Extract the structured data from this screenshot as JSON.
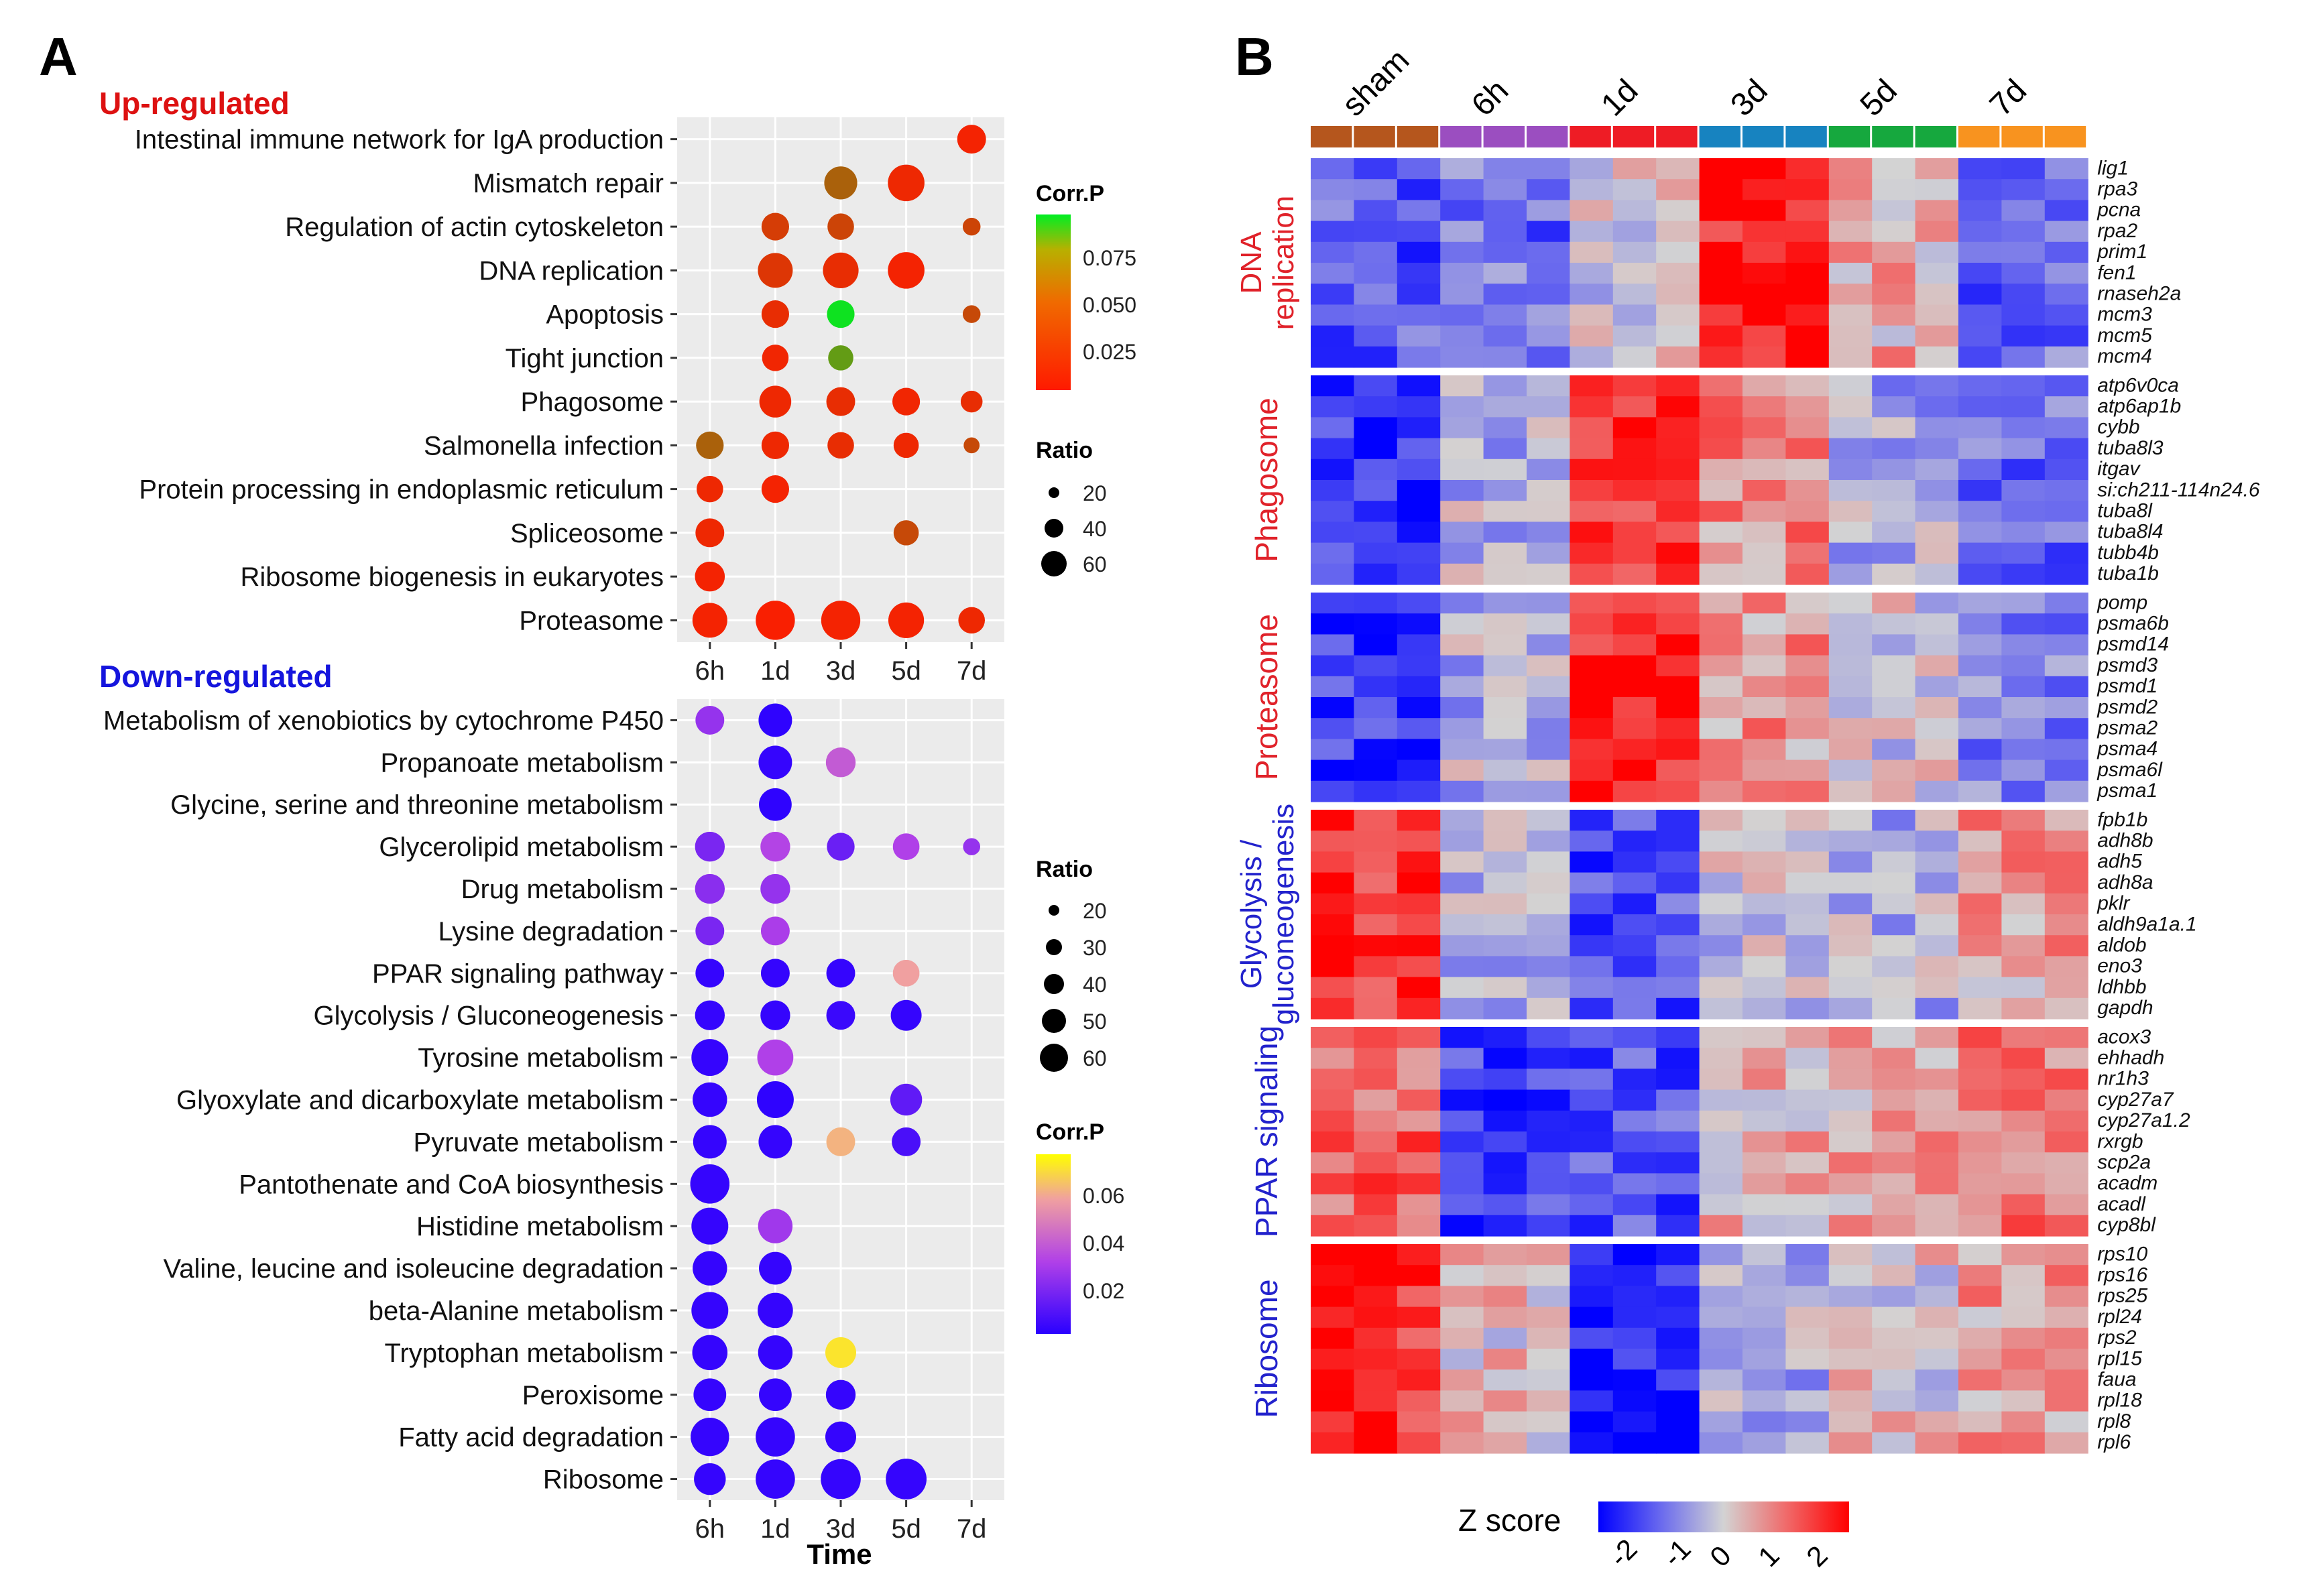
{
  "panelA": {
    "letter": "A",
    "up_title": "Up-regulated",
    "down_title": "Down-regulated",
    "time_label": "Time",
    "up_legend": {
      "corr_title": "Corr.P",
      "corr_ticks": [
        "0.075",
        "0.050",
        "0.025"
      ],
      "ratio_title": "Ratio",
      "ratio_ticks": [
        "20",
        "40",
        "60"
      ]
    },
    "down_legend": {
      "ratio_title": "Ratio",
      "ratio_ticks": [
        "20",
        "30",
        "40",
        "50",
        "60"
      ],
      "corr_title": "Corr.P",
      "corr_ticks": [
        "0.06",
        "0.04",
        "0.02"
      ]
    }
  },
  "panelB": {
    "letter": "B",
    "groups": [
      "sham",
      "6h",
      "1d",
      "3d",
      "5d",
      "7d"
    ],
    "group_colors": [
      "#B5561D",
      "#9B4EC0",
      "#EE1C25",
      "#1783C0",
      "#16A83E",
      "#F8931F"
    ],
    "legend_title": "Z score",
    "legend_ticks": [
      "-2",
      "-1",
      "0",
      "1",
      "2"
    ],
    "modules": [
      {
        "label": "DNA\nreplication",
        "color": "#E0222A",
        "genes": [
          "lig1",
          "rpa3",
          "pcna",
          "rpa2",
          "prim1",
          "fen1",
          "rnaseh2a",
          "mcm3",
          "mcm5",
          "mcm4"
        ]
      },
      {
        "label": "Phagosome",
        "color": "#E0222A",
        "genes": [
          "atp6v0ca",
          "atp6ap1b",
          "cybb",
          "tuba8l3",
          "itgav",
          "si:ch211-114n24.6",
          "tuba8l",
          "tuba8l4",
          "tubb4b",
          "tuba1b"
        ]
      },
      {
        "label": "Proteasome",
        "color": "#E0222A",
        "genes": [
          "pomp",
          "psma6b",
          "psmd14",
          "psmd3",
          "psmd1",
          "psmd2",
          "psma2",
          "psma4",
          "psma6l",
          "psma1"
        ]
      },
      {
        "label": "Glycolysis /\ngluconeogenesis",
        "color": "#2222CC",
        "genes": [
          "fpb1b",
          "adh8b",
          "adh5",
          "adh8a",
          "pklr",
          "aldh9a1a.1",
          "aldob",
          "eno3",
          "ldhbb",
          "gapdh"
        ]
      },
      {
        "label": "PPAR signaling",
        "color": "#2222CC",
        "genes": [
          "acox3",
          "ehhadh",
          "nr1h3",
          "cyp27a7",
          "cyp27a1.2",
          "rxrgb",
          "scp2a",
          "acadm",
          "acadl",
          "cyp8bl"
        ]
      },
      {
        "label": "Ribosome",
        "color": "#2222CC",
        "genes": [
          "rps10",
          "rps16",
          "rps25",
          "rpl24",
          "rps2",
          "rpl15",
          "faua",
          "rpl18",
          "rpl8",
          "rpl6"
        ]
      }
    ],
    "module_profiles": [
      [
        -1.2,
        -1.0,
        0.0,
        1.8,
        0.4,
        -1.0
      ],
      [
        -1.6,
        -0.3,
        1.4,
        0.7,
        -0.4,
        -1.0
      ],
      [
        -1.5,
        -0.3,
        1.7,
        0.6,
        0.0,
        -0.7
      ],
      [
        1.6,
        -0.3,
        -1.3,
        -0.2,
        -0.3,
        0.5
      ],
      [
        1.1,
        -1.4,
        -1.2,
        0.4,
        0.4,
        0.8
      ],
      [
        1.6,
        0.2,
        -1.8,
        -0.3,
        0.1,
        0.5
      ]
    ]
  },
  "chart_data": [
    {
      "type": "scatter",
      "subtype": "bubble",
      "title": "Up-regulated",
      "xlabel": "",
      "x_categories": [
        "6h",
        "1d",
        "3d",
        "5d",
        "7d"
      ],
      "y_categories": [
        "Intestinal immune network for IgA production",
        "Mismatch repair",
        "Regulation of actin cytoskeleton",
        "DNA replication",
        "Apoptosis",
        "Tight junction",
        "Phagosome",
        "Salmonella infection",
        "Protein processing in endoplasmic reticulum",
        "Spliceosome",
        "Ribosome biogenesis in eukaryotes",
        "Proteasome"
      ],
      "color_legend": {
        "title": "Corr.P",
        "ticks": [
          0.075,
          0.05,
          0.025
        ],
        "range": [
          0.0,
          0.09
        ],
        "colors": [
          "#FF1A00",
          "#00EE22"
        ]
      },
      "size_legend": {
        "title": "Ratio",
        "ticks": [
          20,
          40,
          60
        ]
      },
      "points": [
        {
          "pathway": "Intestinal immune network for IgA production",
          "time": "7d",
          "ratio": 26,
          "p": 0.004
        },
        {
          "pathway": "Mismatch repair",
          "time": "3d",
          "ratio": 34,
          "p": 0.03
        },
        {
          "pathway": "Mismatch repair",
          "time": "5d",
          "ratio": 42,
          "p": 0.006
        },
        {
          "pathway": "Regulation of actin cytoskeleton",
          "time": "1d",
          "ratio": 24,
          "p": 0.015
        },
        {
          "pathway": "Regulation of actin cytoskeleton",
          "time": "3d",
          "ratio": 22,
          "p": 0.018
        },
        {
          "pathway": "Regulation of actin cytoskeleton",
          "time": "7d",
          "ratio": 10,
          "p": 0.018
        },
        {
          "pathway": "DNA replication",
          "time": "1d",
          "ratio": 38,
          "p": 0.012
        },
        {
          "pathway": "DNA replication",
          "time": "3d",
          "ratio": 40,
          "p": 0.008
        },
        {
          "pathway": "DNA replication",
          "time": "5d",
          "ratio": 42,
          "p": 0.004
        },
        {
          "pathway": "Apoptosis",
          "time": "1d",
          "ratio": 24,
          "p": 0.008
        },
        {
          "pathway": "Apoptosis",
          "time": "3d",
          "ratio": 24,
          "p": 0.085
        },
        {
          "pathway": "Apoptosis",
          "time": "7d",
          "ratio": 10,
          "p": 0.02
        },
        {
          "pathway": "Tight junction",
          "time": "1d",
          "ratio": 22,
          "p": 0.005
        },
        {
          "pathway": "Tight junction",
          "time": "3d",
          "ratio": 20,
          "p": 0.055
        },
        {
          "pathway": "Phagosome",
          "time": "1d",
          "ratio": 32,
          "p": 0.006
        },
        {
          "pathway": "Phagosome",
          "time": "3d",
          "ratio": 26,
          "p": 0.008
        },
        {
          "pathway": "Phagosome",
          "time": "5d",
          "ratio": 24,
          "p": 0.005
        },
        {
          "pathway": "Phagosome",
          "time": "7d",
          "ratio": 15,
          "p": 0.008
        },
        {
          "pathway": "Salmonella infection",
          "time": "6h",
          "ratio": 24,
          "p": 0.03
        },
        {
          "pathway": "Salmonella infection",
          "time": "1d",
          "ratio": 24,
          "p": 0.006
        },
        {
          "pathway": "Salmonella infection",
          "time": "3d",
          "ratio": 22,
          "p": 0.008
        },
        {
          "pathway": "Salmonella infection",
          "time": "5d",
          "ratio": 20,
          "p": 0.006
        },
        {
          "pathway": "Salmonella infection",
          "time": "7d",
          "ratio": 8,
          "p": 0.02
        },
        {
          "pathway": "Protein processing in endoplasmic reticulum",
          "time": "6h",
          "ratio": 22,
          "p": 0.006
        },
        {
          "pathway": "Protein processing in endoplasmic reticulum",
          "time": "1d",
          "ratio": 24,
          "p": 0.004
        },
        {
          "pathway": "Spliceosome",
          "time": "6h",
          "ratio": 26,
          "p": 0.006
        },
        {
          "pathway": "Spliceosome",
          "time": "5d",
          "ratio": 20,
          "p": 0.02
        },
        {
          "pathway": "Ribosome biogenesis in eukaryotes",
          "time": "6h",
          "ratio": 28,
          "p": 0.004
        },
        {
          "pathway": "Proteasome",
          "time": "6h",
          "ratio": 38,
          "p": 0.004
        },
        {
          "pathway": "Proteasome",
          "time": "1d",
          "ratio": 48,
          "p": 0.002
        },
        {
          "pathway": "Proteasome",
          "time": "3d",
          "ratio": 48,
          "p": 0.004
        },
        {
          "pathway": "Proteasome",
          "time": "5d",
          "ratio": 40,
          "p": 0.004
        },
        {
          "pathway": "Proteasome",
          "time": "7d",
          "ratio": 22,
          "p": 0.006
        }
      ]
    },
    {
      "type": "scatter",
      "subtype": "bubble",
      "title": "Down-regulated",
      "xlabel": "Time",
      "x_categories": [
        "6h",
        "1d",
        "3d",
        "5d",
        "7d"
      ],
      "y_categories": [
        "Metabolism of xenobiotics by cytochrome P450",
        "Propanoate metabolism",
        "Glycine, serine and threonine metabolism",
        "Glycerolipid metabolism",
        "Drug metabolism",
        "Lysine degradation",
        "PPAR signaling pathway",
        "Glycolysis / Gluconeogenesis",
        "Tyrosine metabolism",
        "Glyoxylate and dicarboxylate metabolism",
        "Pyruvate metabolism",
        "Pantothenate and CoA biosynthesis",
        "Histidine metabolism",
        "Valine, leucine and isoleucine degradation",
        "beta-Alanine metabolism",
        "Tryptophan metabolism",
        "Peroxisome",
        "Fatty acid degradation",
        "Ribosome"
      ],
      "color_legend": {
        "title": "Corr.P",
        "ticks": [
          0.06,
          0.04,
          0.02
        ],
        "range": [
          0.0,
          0.075
        ],
        "colors": [
          "#2A00FF",
          "#B040E8",
          "#F0A0A0",
          "#FFFF00"
        ]
      },
      "size_legend": {
        "title": "Ratio",
        "ticks": [
          20,
          30,
          40,
          50,
          60
        ]
      },
      "points": [
        {
          "pathway": "Metabolism of xenobiotics by cytochrome P450",
          "time": "6h",
          "ratio": 28,
          "p": 0.02
        },
        {
          "pathway": "Metabolism of xenobiotics by cytochrome P450",
          "time": "1d",
          "ratio": 38,
          "p": 0.001
        },
        {
          "pathway": "Propanoate metabolism",
          "time": "1d",
          "ratio": 38,
          "p": 0.002
        },
        {
          "pathway": "Propanoate metabolism",
          "time": "3d",
          "ratio": 30,
          "p": 0.032
        },
        {
          "pathway": "Glycine, serine and threonine metabolism",
          "time": "1d",
          "ratio": 36,
          "p": 0.001
        },
        {
          "pathway": "Glycerolipid metabolism",
          "time": "6h",
          "ratio": 30,
          "p": 0.015
        },
        {
          "pathway": "Glycerolipid metabolism",
          "time": "1d",
          "ratio": 30,
          "p": 0.026
        },
        {
          "pathway": "Glycerolipid metabolism",
          "time": "3d",
          "ratio": 26,
          "p": 0.012
        },
        {
          "pathway": "Glycerolipid metabolism",
          "time": "5d",
          "ratio": 24,
          "p": 0.025
        },
        {
          "pathway": "Glycerolipid metabolism",
          "time": "7d",
          "ratio": 10,
          "p": 0.02
        },
        {
          "pathway": "Drug metabolism",
          "time": "6h",
          "ratio": 30,
          "p": 0.018
        },
        {
          "pathway": "Drug metabolism",
          "time": "1d",
          "ratio": 30,
          "p": 0.02
        },
        {
          "pathway": "Lysine degradation",
          "time": "6h",
          "ratio": 28,
          "p": 0.015
        },
        {
          "pathway": "Lysine degradation",
          "time": "1d",
          "ratio": 28,
          "p": 0.024
        },
        {
          "pathway": "PPAR signaling pathway",
          "time": "6h",
          "ratio": 28,
          "p": 0.002
        },
        {
          "pathway": "PPAR signaling pathway",
          "time": "1d",
          "ratio": 28,
          "p": 0.002
        },
        {
          "pathway": "PPAR signaling pathway",
          "time": "3d",
          "ratio": 28,
          "p": 0.002
        },
        {
          "pathway": "PPAR signaling pathway",
          "time": "5d",
          "ratio": 24,
          "p": 0.05
        },
        {
          "pathway": "Glycolysis / Gluconeogenesis",
          "time": "6h",
          "ratio": 30,
          "p": 0.002
        },
        {
          "pathway": "Glycolysis / Gluconeogenesis",
          "time": "1d",
          "ratio": 30,
          "p": 0.002
        },
        {
          "pathway": "Glycolysis / Gluconeogenesis",
          "time": "3d",
          "ratio": 28,
          "p": 0.003
        },
        {
          "pathway": "Glycolysis / Gluconeogenesis",
          "time": "5d",
          "ratio": 32,
          "p": 0.002
        },
        {
          "pathway": "Tyrosine metabolism",
          "time": "6h",
          "ratio": 46,
          "p": 0.002
        },
        {
          "pathway": "Tyrosine metabolism",
          "time": "1d",
          "ratio": 44,
          "p": 0.025
        },
        {
          "pathway": "Glyoxylate and dicarboxylate metabolism",
          "time": "6h",
          "ratio": 40,
          "p": 0.002
        },
        {
          "pathway": "Glyoxylate and dicarboxylate metabolism",
          "time": "1d",
          "ratio": 46,
          "p": 0.001
        },
        {
          "pathway": "Glyoxylate and dicarboxylate metabolism",
          "time": "5d",
          "ratio": 34,
          "p": 0.01
        },
        {
          "pathway": "Pyruvate metabolism",
          "time": "6h",
          "ratio": 38,
          "p": 0.002
        },
        {
          "pathway": "Pyruvate metabolism",
          "time": "1d",
          "ratio": 38,
          "p": 0.002
        },
        {
          "pathway": "Pyruvate metabolism",
          "time": "3d",
          "ratio": 28,
          "p": 0.055
        },
        {
          "pathway": "Pyruvate metabolism",
          "time": "5d",
          "ratio": 28,
          "p": 0.006
        },
        {
          "pathway": "Pantothenate and CoA biosynthesis",
          "time": "6h",
          "ratio": 52,
          "p": 0.002
        },
        {
          "pathway": "Histidine metabolism",
          "time": "6h",
          "ratio": 46,
          "p": 0.002
        },
        {
          "pathway": "Histidine metabolism",
          "time": "1d",
          "ratio": 40,
          "p": 0.022
        },
        {
          "pathway": "Valine, leucine and isoleucine degradation",
          "time": "6h",
          "ratio": 40,
          "p": 0.002
        },
        {
          "pathway": "Valine, leucine and isoleucine degradation",
          "time": "1d",
          "ratio": 36,
          "p": 0.002
        },
        {
          "pathway": "beta-Alanine metabolism",
          "time": "6h",
          "ratio": 46,
          "p": 0.002
        },
        {
          "pathway": "beta-Alanine metabolism",
          "time": "1d",
          "ratio": 42,
          "p": 0.002
        },
        {
          "pathway": "Tryptophan metabolism",
          "time": "6h",
          "ratio": 42,
          "p": 0.002
        },
        {
          "pathway": "Tryptophan metabolism",
          "time": "1d",
          "ratio": 40,
          "p": 0.002
        },
        {
          "pathway": "Tryptophan metabolism",
          "time": "3d",
          "ratio": 32,
          "p": 0.068
        },
        {
          "pathway": "Peroxisome",
          "time": "6h",
          "ratio": 36,
          "p": 0.002
        },
        {
          "pathway": "Peroxisome",
          "time": "1d",
          "ratio": 36,
          "p": 0.002
        },
        {
          "pathway": "Peroxisome",
          "time": "3d",
          "ratio": 30,
          "p": 0.002
        },
        {
          "pathway": "Fatty acid degradation",
          "time": "6h",
          "ratio": 50,
          "p": 0.002
        },
        {
          "pathway": "Fatty acid degradation",
          "time": "1d",
          "ratio": 52,
          "p": 0.002
        },
        {
          "pathway": "Fatty acid degradation",
          "time": "3d",
          "ratio": 32,
          "p": 0.002
        },
        {
          "pathway": "Ribosome",
          "time": "6h",
          "ratio": 34,
          "p": 0.002
        },
        {
          "pathway": "Ribosome",
          "time": "1d",
          "ratio": 52,
          "p": 0.002
        },
        {
          "pathway": "Ribosome",
          "time": "3d",
          "ratio": 54,
          "p": 0.002
        },
        {
          "pathway": "Ribosome",
          "time": "5d",
          "ratio": 56,
          "p": 0.002
        }
      ]
    },
    {
      "type": "heatmap",
      "title": "",
      "legend": "Z score",
      "z_range": [
        -2,
        2
      ],
      "column_groups": [
        "sham",
        "6h",
        "1d",
        "3d",
        "5d",
        "7d"
      ],
      "replicates_per_group": 3,
      "row_modules": [
        "DNA replication",
        "Phagosome",
        "Proteasome",
        "Glycolysis / gluconeogenesis",
        "PPAR signaling",
        "Ribosome"
      ],
      "module_mean_z_by_group": [
        [
          -1.2,
          -1.0,
          0.0,
          1.8,
          0.4,
          -1.0
        ],
        [
          -1.6,
          -0.3,
          1.4,
          0.7,
          -0.4,
          -1.0
        ],
        [
          -1.5,
          -0.3,
          1.7,
          0.6,
          0.0,
          -0.7
        ],
        [
          1.6,
          -0.3,
          -1.3,
          -0.2,
          -0.3,
          0.5
        ],
        [
          1.1,
          -1.4,
          -1.2,
          0.4,
          0.4,
          0.8
        ],
        [
          1.6,
          0.2,
          -1.8,
          -0.3,
          0.1,
          0.5
        ]
      ]
    }
  ]
}
